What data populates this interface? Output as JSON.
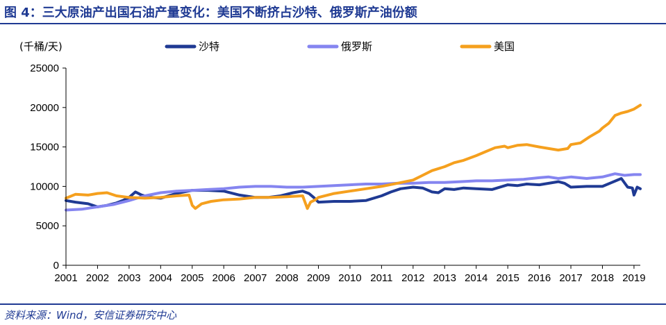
{
  "figure": {
    "title": "图 4：三大原油产出国石油产量变化：美国不断挤占沙特、俄罗斯产油份额",
    "source": "资料来源：Wind，安信证券研究中心"
  },
  "chart_data": {
    "type": "line",
    "ylabel": "(千桶/天)",
    "ylim": [
      0,
      25000
    ],
    "yticks": [
      0,
      5000,
      10000,
      15000,
      20000,
      25000
    ],
    "xlim": [
      2001,
      2019.2
    ],
    "xtick_labels": [
      "2001",
      "2002",
      "2003",
      "2004",
      "2005",
      "2006",
      "2007",
      "2008",
      "2009",
      "2010",
      "2011",
      "2012",
      "2013",
      "2014",
      "2015",
      "2016",
      "2017",
      "2018",
      "2019"
    ],
    "legend_position": "top",
    "series": [
      {
        "name": "沙特",
        "color": "#1F3A93",
        "x": [
          2001,
          2001.3,
          2001.7,
          2002,
          2002.3,
          2002.6,
          2002.8,
          2003,
          2003.2,
          2003.4,
          2003.7,
          2004,
          2004.5,
          2005,
          2005.5,
          2006,
          2006.5,
          2007,
          2007.4,
          2007.8,
          2008.2,
          2008.5,
          2008.7,
          2008.85,
          2009,
          2009.5,
          2010,
          2010.5,
          2011,
          2011.3,
          2011.6,
          2012,
          2012.3,
          2012.6,
          2012.8,
          2013,
          2013.3,
          2013.6,
          2014,
          2014.5,
          2015,
          2015.3,
          2015.6,
          2016,
          2016.3,
          2016.6,
          2016.8,
          2017,
          2017.5,
          2018,
          2018.3,
          2018.6,
          2018.8,
          2018.95,
          2019.0,
          2019.1,
          2019.2
        ],
        "y": [
          8200,
          8000,
          7800,
          7400,
          7600,
          7900,
          8200,
          8600,
          9300,
          8900,
          8600,
          8500,
          9100,
          9500,
          9500,
          9400,
          8900,
          8600,
          8600,
          8800,
          9200,
          9400,
          9100,
          8600,
          8000,
          8100,
          8100,
          8200,
          8800,
          9300,
          9700,
          9900,
          9800,
          9300,
          9200,
          9700,
          9600,
          9800,
          9700,
          9600,
          10200,
          10100,
          10300,
          10200,
          10400,
          10600,
          10400,
          9900,
          10000,
          10000,
          10500,
          11000,
          9900,
          9800,
          8900,
          9900,
          9700
        ]
      },
      {
        "name": "俄罗斯",
        "color": "#8585F0",
        "x": [
          2001,
          2001.5,
          2002,
          2002.5,
          2003,
          2003.5,
          2004,
          2004.5,
          2005,
          2005.5,
          2006,
          2006.5,
          2007,
          2007.5,
          2008,
          2008.5,
          2009,
          2009.5,
          2010,
          2010.5,
          2011,
          2011.5,
          2012,
          2012.5,
          2013,
          2013.5,
          2014,
          2014.5,
          2015,
          2015.5,
          2016,
          2016.3,
          2016.6,
          2017,
          2017.5,
          2018,
          2018.4,
          2018.7,
          2019,
          2019.2
        ],
        "y": [
          7000,
          7100,
          7400,
          7700,
          8200,
          8800,
          9200,
          9400,
          9500,
          9600,
          9700,
          9900,
          10000,
          10000,
          9900,
          9900,
          10000,
          10100,
          10200,
          10300,
          10300,
          10400,
          10400,
          10500,
          10500,
          10600,
          10700,
          10700,
          10800,
          10900,
          11100,
          11200,
          11000,
          11200,
          11000,
          11200,
          11600,
          11400,
          11500,
          11500
        ]
      },
      {
        "name": "美国",
        "color": "#F5A01E",
        "x": [
          2001,
          2001.3,
          2001.7,
          2002,
          2002.3,
          2002.6,
          2003,
          2003.5,
          2004,
          2004.5,
          2004.9,
          2005,
          2005.1,
          2005.3,
          2005.6,
          2006,
          2006.5,
          2007,
          2007.5,
          2008,
          2008.5,
          2008.65,
          2008.75,
          2008.9,
          2009,
          2009.5,
          2010,
          2010.5,
          2011,
          2011.5,
          2012,
          2012.3,
          2012.6,
          2013,
          2013.3,
          2013.6,
          2014,
          2014.3,
          2014.6,
          2014.9,
          2015,
          2015.3,
          2015.6,
          2016,
          2016.3,
          2016.6,
          2016.9,
          2017,
          2017.3,
          2017.6,
          2017.9,
          2018,
          2018.2,
          2018.4,
          2018.6,
          2018.8,
          2019,
          2019.2
        ],
        "y": [
          8500,
          9000,
          8900,
          9100,
          9200,
          8800,
          8600,
          8500,
          8600,
          8800,
          8900,
          7600,
          7200,
          7800,
          8100,
          8300,
          8400,
          8600,
          8600,
          8700,
          8800,
          7200,
          8000,
          8300,
          8600,
          9100,
          9400,
          9700,
          10000,
          10400,
          10800,
          11400,
          12000,
          12500,
          13000,
          13300,
          13900,
          14400,
          14900,
          15100,
          14900,
          15200,
          15300,
          15000,
          14800,
          14600,
          14800,
          15300,
          15500,
          16300,
          17000,
          17400,
          18000,
          19000,
          19300,
          19500,
          19800,
          20300
        ]
      }
    ]
  }
}
